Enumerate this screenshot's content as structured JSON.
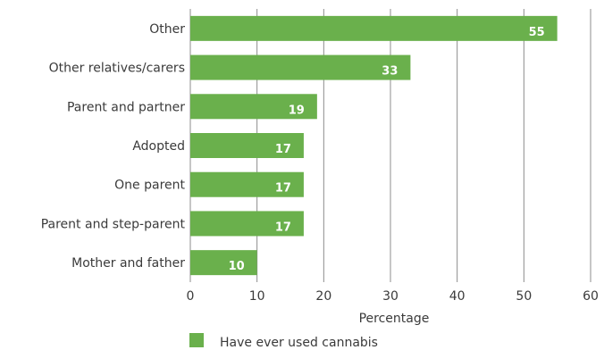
{
  "chart_data": {
    "type": "bar",
    "orientation": "horizontal",
    "categories": [
      "Other",
      "Other relatives/carers",
      "Parent and partner",
      "Adopted",
      "One parent",
      "Parent and step-parent",
      "Mother and father"
    ],
    "series": [
      {
        "name": "Have ever used cannabis",
        "values": [
          55,
          33,
          19,
          17,
          17,
          17,
          10
        ]
      }
    ],
    "xlabel": "Percentage",
    "ylabel": "",
    "xlim": [
      0,
      60
    ],
    "xticks": [
      0,
      10,
      20,
      30,
      40,
      50,
      60
    ],
    "grid": true,
    "legend_position": "bottom-center",
    "colors": {
      "bar": "#6ab04c",
      "grid": "#8c8c8c",
      "value_label": "#ffffff"
    }
  }
}
